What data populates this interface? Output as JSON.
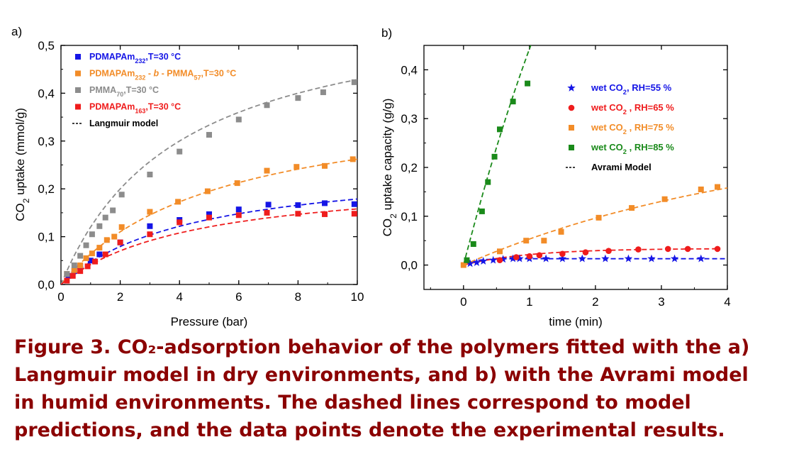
{
  "caption": {
    "lines": [
      "Figure 3. CO₂-adsorption behavior of the polymers fitted with the a)",
      "Langmuir model in dry environments, and b) with the Avrami model",
      "in humid environments. The dashed lines correspond to model",
      "predictions, and the data points denote the experimental results."
    ]
  },
  "chart_data": [
    {
      "panel": "a)",
      "type": "scatter",
      "xlabel": "Pressure (bar)",
      "ylabel": "CO2 uptake (mmol/g)",
      "xlim": [
        0,
        10
      ],
      "ylim": [
        0,
        0.5
      ],
      "xticks": [
        "0",
        "2",
        "4",
        "6",
        "8",
        "10"
      ],
      "yticks": [
        "0,0",
        "0,1",
        "0,2",
        "0,3",
        "0,4",
        "0,5"
      ],
      "grid": false,
      "legend_position": "top-left",
      "fit_legend": "Langmuir model",
      "series": [
        {
          "name": "PDMAPAm232,T=30 °C",
          "legend_parts": [
            [
              "PDMAPAm",
              ""
            ],
            [
              "232",
              "sub"
            ],
            [
              ",T=30 °C",
              ""
            ]
          ],
          "color": "#1515e6",
          "marker": "square",
          "x": [
            0.25,
            0.45,
            0.65,
            1.0,
            1.3,
            2.0,
            3.0,
            4.0,
            5.0,
            6.0,
            7.0,
            8.0,
            8.9,
            9.9
          ],
          "y": [
            0.018,
            0.028,
            0.038,
            0.05,
            0.063,
            0.088,
            0.122,
            0.135,
            0.147,
            0.157,
            0.167,
            0.166,
            0.17,
            0.168
          ],
          "fit": {
            "qmax": 0.26,
            "b": 0.22
          }
        },
        {
          "name": "PDMAPAm232 - b - PMMA57,T=30 °C",
          "legend_parts": [
            [
              "PDMAPAm",
              ""
            ],
            [
              "232",
              "sub"
            ],
            [
              " - ",
              ""
            ],
            [
              "b",
              "it"
            ],
            [
              " - PMMA",
              ""
            ],
            [
              "57",
              "sub"
            ],
            [
              ",T=30 °C",
              ""
            ]
          ],
          "color": "#f28c28",
          "marker": "square",
          "x": [
            0.2,
            0.45,
            0.65,
            0.85,
            1.05,
            1.3,
            1.55,
            1.8,
            2.05,
            3.0,
            3.95,
            4.95,
            5.95,
            6.95,
            7.95,
            8.9,
            9.85
          ],
          "y": [
            0.022,
            0.03,
            0.04,
            0.055,
            0.065,
            0.077,
            0.093,
            0.1,
            0.12,
            0.152,
            0.173,
            0.195,
            0.212,
            0.238,
            0.246,
            0.248,
            0.262
          ],
          "fit": {
            "qmax": 0.4,
            "b": 0.19
          }
        },
        {
          "name": "PMMA70,T=30 °C",
          "legend_parts": [
            [
              "PMMA",
              ""
            ],
            [
              "70",
              "sub"
            ],
            [
              ",T=30 °C",
              ""
            ]
          ],
          "color": "#8c8c8c",
          "marker": "square",
          "x": [
            0.2,
            0.45,
            0.65,
            0.85,
            1.05,
            1.3,
            1.5,
            1.75,
            2.05,
            3.0,
            4.0,
            5.0,
            6.0,
            6.95,
            8.0,
            8.85,
            9.9
          ],
          "y": [
            0.022,
            0.04,
            0.06,
            0.082,
            0.105,
            0.122,
            0.14,
            0.155,
            0.188,
            0.23,
            0.278,
            0.313,
            0.345,
            0.375,
            0.39,
            0.402,
            0.423
          ],
          "fit": {
            "qmax": 0.6,
            "b": 0.25
          }
        },
        {
          "name": "PDMAPAm163,T=30 °C",
          "legend_parts": [
            [
              "PDMAPAm",
              ""
            ],
            [
              "163",
              "sub"
            ],
            [
              ",T=30 °C",
              ""
            ]
          ],
          "color": "#ef1c1c",
          "marker": "square",
          "x": [
            0.2,
            0.4,
            0.65,
            0.9,
            1.15,
            1.5,
            2.0,
            3.0,
            4.0,
            5.0,
            6.0,
            6.95,
            8.0,
            8.9,
            9.9
          ],
          "y": [
            0.008,
            0.018,
            0.028,
            0.038,
            0.048,
            0.063,
            0.088,
            0.105,
            0.13,
            0.14,
            0.145,
            0.15,
            0.148,
            0.147,
            0.148
          ],
          "fit": {
            "qmax": 0.23,
            "b": 0.22
          }
        }
      ]
    },
    {
      "panel": "b)",
      "type": "scatter",
      "xlabel": "time (min)",
      "ylabel": "CO2 uptake capacity (g/g)",
      "xlim": [
        -0.6,
        4
      ],
      "ylim": [
        -0.05,
        0.45
      ],
      "xticks": [
        "0",
        "1",
        "2",
        "3",
        "4"
      ],
      "yticks": [
        "0,0",
        "0,1",
        "0,2",
        "0,3",
        "0,4"
      ],
      "grid": false,
      "legend_position": "top-right",
      "fit_legend": "Avrami Model",
      "series": [
        {
          "name": "wet CO2, RH=55 %",
          "legend_parts": [
            [
              "wet CO",
              ""
            ],
            [
              "2",
              "sub"
            ],
            [
              ", RH=55 %",
              ""
            ]
          ],
          "color": "#1515e6",
          "marker": "star",
          "x": [
            0.1,
            0.2,
            0.3,
            0.45,
            0.6,
            0.75,
            0.85,
            1.0,
            1.25,
            1.5,
            1.8,
            2.15,
            2.5,
            2.85,
            3.2,
            3.6
          ],
          "y": [
            0.003,
            0.005,
            0.008,
            0.01,
            0.012,
            0.013,
            0.013,
            0.013,
            0.013,
            0.013,
            0.013,
            0.013,
            0.013,
            0.013,
            0.013,
            0.013
          ],
          "fit": {
            "qmax": 0.013,
            "k": 6.0,
            "n": 1.0,
            "t_end": 4.0
          }
        },
        {
          "name": "wet CO2 , RH=65 %",
          "legend_parts": [
            [
              "wet CO",
              ""
            ],
            [
              "2",
              "sub"
            ],
            [
              " , RH=65 %",
              ""
            ]
          ],
          "color": "#ef1c1c",
          "marker": "circle",
          "x": [
            0.55,
            0.8,
            1.0,
            1.15,
            1.5,
            1.85,
            2.2,
            2.65,
            3.1,
            3.4,
            3.85
          ],
          "y": [
            0.01,
            0.016,
            0.018,
            0.02,
            0.023,
            0.026,
            0.029,
            0.032,
            0.033,
            0.033,
            0.033
          ],
          "fit": {
            "qmax": 0.034,
            "k": 1.0,
            "n": 1.0,
            "t_end": 3.85
          }
        },
        {
          "name": "wet CO2 , RH=75 %",
          "legend_parts": [
            [
              "wet CO",
              ""
            ],
            [
              "2",
              "sub"
            ],
            [
              " , RH=75 %",
              ""
            ]
          ],
          "color": "#f28c28",
          "marker": "square",
          "x": [
            0.0,
            0.55,
            0.95,
            1.22,
            1.48,
            2.05,
            2.55,
            3.05,
            3.6,
            3.85
          ],
          "y": [
            0.0,
            0.028,
            0.05,
            0.05,
            0.068,
            0.097,
            0.117,
            0.135,
            0.155,
            0.16
          ],
          "fit": {
            "qmax": 0.27,
            "k": 0.22,
            "n": 1.0,
            "t_end": 4.0
          }
        },
        {
          "name": "wet CO2 , RH=85 %",
          "legend_parts": [
            [
              "wet CO",
              ""
            ],
            [
              "2",
              "sub"
            ],
            [
              " , RH=85 %",
              ""
            ]
          ],
          "color": "#1a8a1a",
          "marker": "square",
          "x": [
            0.05,
            0.15,
            0.28,
            0.37,
            0.47,
            0.55,
            0.75,
            0.97
          ],
          "y": [
            0.01,
            0.043,
            0.11,
            0.17,
            0.222,
            0.278,
            0.335,
            0.372
          ],
          "fit": {
            "qmax": 1.5,
            "k": 0.35,
            "n": 1.0,
            "t_end": 1.1
          }
        }
      ]
    }
  ]
}
